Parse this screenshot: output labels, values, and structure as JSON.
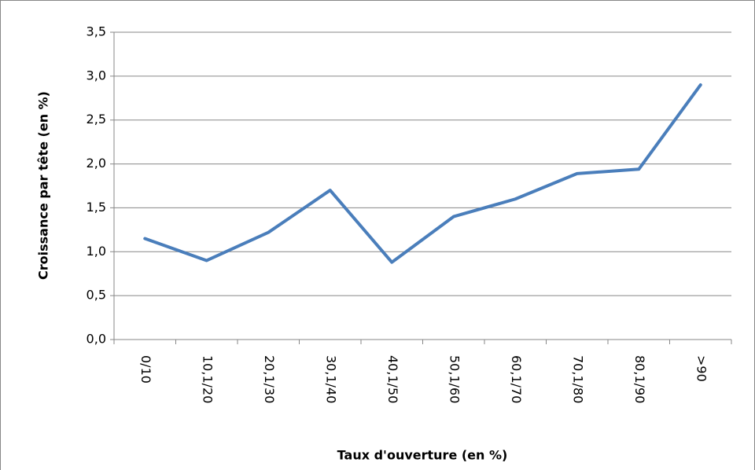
{
  "chart_data": {
    "type": "line",
    "x_label": "Taux d'ouverture (en %)",
    "y_label": "Croissance par tête (en %)",
    "categories": [
      "0/10",
      "10,1/20",
      "20,1/30",
      "30,1/40",
      "40,1/50",
      "50,1/60",
      "60,1/70",
      "70,1/80",
      "80,1/90",
      ">90"
    ],
    "values": [
      1.15,
      0.9,
      1.22,
      1.7,
      0.88,
      1.4,
      1.6,
      1.89,
      1.94,
      2.9
    ],
    "color": "#4a7ebb",
    "ylim": [
      0,
      3.5
    ],
    "yticks": [
      {
        "value": 0,
        "label": "0,0"
      },
      {
        "value": 0.5,
        "label": "0,5"
      },
      {
        "value": 1,
        "label": "1,0"
      },
      {
        "value": 1.5,
        "label": "1,5"
      },
      {
        "value": 2,
        "label": "2,0"
      },
      {
        "value": 2.5,
        "label": "2,5"
      },
      {
        "value": 3,
        "label": "3,0"
      },
      {
        "value": 3.5,
        "label": "3,5"
      }
    ],
    "grid": true
  }
}
